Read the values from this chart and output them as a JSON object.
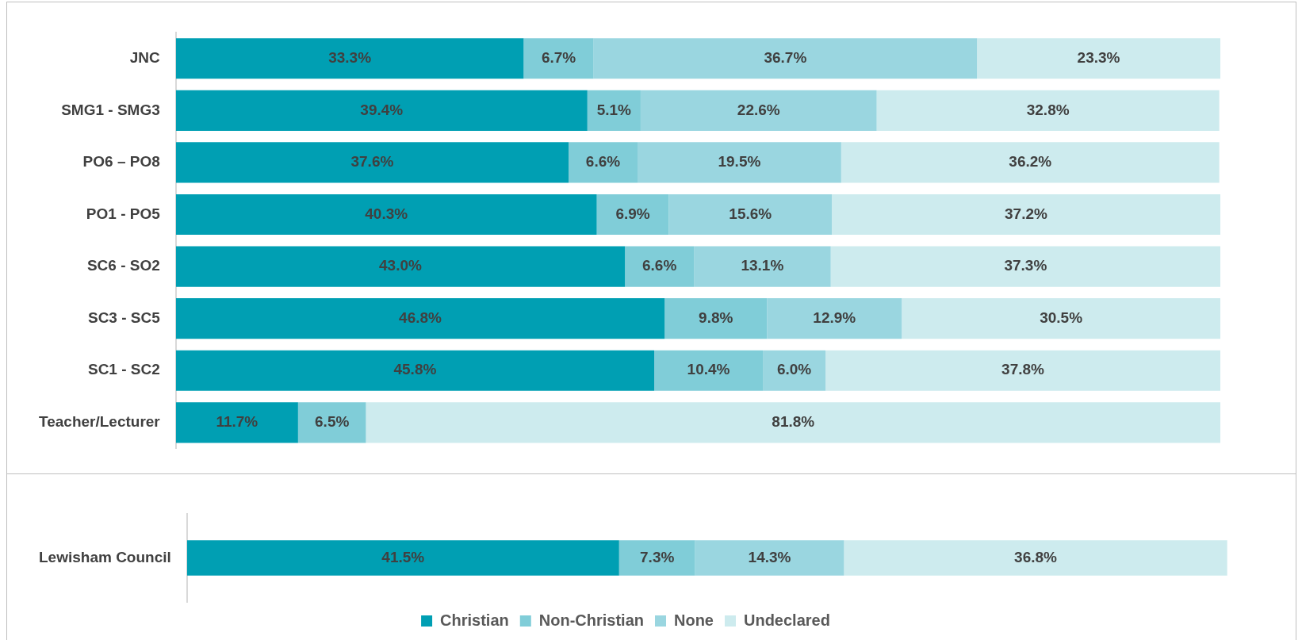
{
  "chart_data": [
    {
      "type": "bar",
      "orientation": "horizontal",
      "stacked": true,
      "legend": false,
      "grid": false,
      "tick_labels": "y",
      "xlim": [
        0,
        100
      ],
      "categories": [
        "JNC",
        "SMG1 - SMG3",
        "PO6 – PO8",
        "PO1 - PO5",
        "SC6 - SO2",
        "SC3 - SC5",
        "SC1 - SC2",
        "Teacher/Lecturer"
      ],
      "series": [
        {
          "color": "#009fb3",
          "values": [
            33.3,
            39.4,
            37.6,
            40.3,
            43.0,
            46.8,
            45.8,
            11.7
          ],
          "value_labels": [
            "33.3%",
            "39.4%",
            "37.6%",
            "40.3%",
            "43.0%",
            "46.8%",
            "45.8%",
            "11.7%"
          ]
        },
        {
          "color": "#80cdd8",
          "values": [
            6.7,
            5.1,
            6.6,
            6.9,
            6.6,
            9.8,
            10.4,
            6.5
          ],
          "value_labels": [
            "6.7%",
            "5.1%",
            "6.6%",
            "6.9%",
            "6.6%",
            "9.8%",
            "10.4%",
            "6.5%"
          ]
        },
        {
          "color": "#9ad6e0",
          "values": [
            36.7,
            22.6,
            19.5,
            15.6,
            13.1,
            12.9,
            6.0,
            null
          ],
          "value_labels": [
            "36.7%",
            "22.6%",
            "19.5%",
            "15.6%",
            "13.1%",
            "12.9%",
            "6.0%",
            null
          ]
        },
        {
          "color": "#cdebee",
          "values": [
            23.3,
            32.8,
            36.2,
            37.2,
            37.3,
            30.5,
            37.8,
            81.8
          ],
          "value_labels": [
            "23.3%",
            "32.8%",
            "36.2%",
            "37.2%",
            "37.3%",
            "30.5%",
            "37.8%",
            "81.8%"
          ]
        }
      ]
    },
    {
      "type": "bar",
      "orientation": "horizontal",
      "stacked": true,
      "legend": "bottom",
      "grid": false,
      "tick_labels": "y",
      "xlim": [
        0,
        100
      ],
      "categories": [
        "Lewisham Council"
      ],
      "series": [
        {
          "name": "Christian",
          "color": "#009fb3",
          "values": [
            41.5
          ],
          "value_labels": [
            "41.5%"
          ]
        },
        {
          "name": "Non-Christian",
          "color": "#80cdd8",
          "values": [
            7.3
          ],
          "value_labels": [
            "7.3%"
          ]
        },
        {
          "name": "None",
          "color": "#9ad6e0",
          "values": [
            14.3
          ],
          "value_labels": [
            "14.3%"
          ]
        },
        {
          "name": "Undeclared",
          "color": "#cdebee",
          "values": [
            36.8
          ],
          "value_labels": [
            "36.8%"
          ]
        }
      ]
    }
  ]
}
